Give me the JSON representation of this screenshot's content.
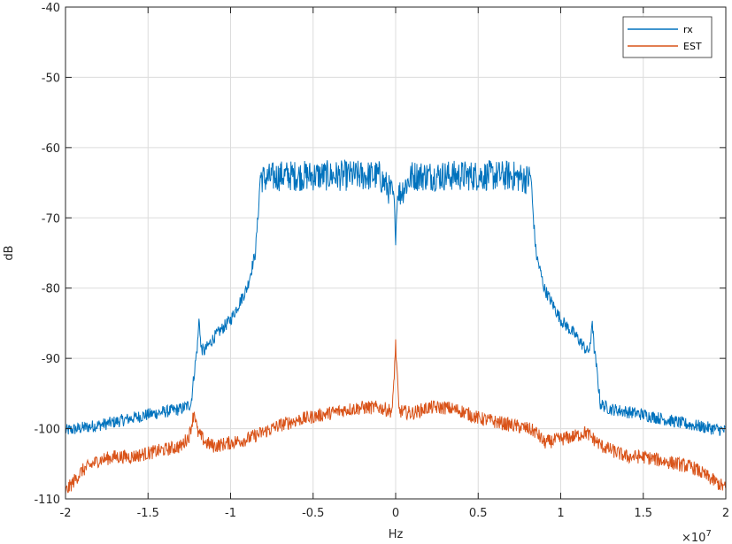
{
  "chart_data": {
    "type": "line",
    "title": "",
    "xlabel": "Hz",
    "ylabel": "dB",
    "x_exponent_label": "×10",
    "x_exponent_power": "7",
    "xlim": [
      -2,
      2
    ],
    "ylim": [
      -110,
      -40
    ],
    "x_ticks": [
      -2,
      -1.5,
      -1,
      -0.5,
      0,
      0.5,
      1,
      1.5,
      2
    ],
    "x_tick_labels": [
      "-2",
      "-1.5",
      "-1",
      "-0.5",
      "0",
      "0.5",
      "1",
      "1.5",
      "2"
    ],
    "y_ticks": [
      -110,
      -100,
      -90,
      -80,
      -70,
      -60,
      -50,
      -40
    ],
    "y_tick_labels": [
      "-110",
      "-100",
      "-90",
      "-80",
      "-70",
      "-60",
      "-50",
      "-40"
    ],
    "grid": true,
    "legend_position": "top-right",
    "series": [
      {
        "name": "rx",
        "color": "#0072bd",
        "x": [
          -2.0,
          -1.75,
          -1.5,
          -1.3,
          -1.24,
          -1.22,
          -1.2,
          -1.19,
          -1.18,
          -1.16,
          -1.1,
          -1.0,
          -0.9,
          -0.85,
          -0.83,
          -0.82,
          -0.8,
          -0.7,
          -0.5,
          -0.3,
          -0.1,
          -0.01,
          0.0,
          0.01,
          0.1,
          0.3,
          0.5,
          0.7,
          0.8,
          0.82,
          0.83,
          0.85,
          0.9,
          1.0,
          1.1,
          1.16,
          1.18,
          1.19,
          1.2,
          1.22,
          1.24,
          1.3,
          1.5,
          1.75,
          2.0
        ],
        "y": [
          -100.3,
          -99.3,
          -98.0,
          -97.2,
          -96.5,
          -92.0,
          -88.0,
          -84.0,
          -88.5,
          -89.0,
          -87.0,
          -84.5,
          -80.0,
          -75.0,
          -68.5,
          -64.0,
          -64.5,
          -64.0,
          -64.0,
          -64.0,
          -64.0,
          -67.0,
          -73.0,
          -67.0,
          -64.0,
          -64.0,
          -64.0,
          -64.0,
          -64.5,
          -64.0,
          -68.5,
          -75.0,
          -80.0,
          -84.5,
          -87.0,
          -89.0,
          -88.5,
          -84.0,
          -88.0,
          -92.0,
          -96.5,
          -97.2,
          -98.0,
          -99.3,
          -100.3
        ]
      },
      {
        "name": "EST",
        "color": "#d95319",
        "x": [
          -2.0,
          -1.9,
          -1.8,
          -1.7,
          -1.6,
          -1.5,
          -1.4,
          -1.3,
          -1.25,
          -1.22,
          -1.2,
          -1.15,
          -1.1,
          -1.0,
          -0.9,
          -0.8,
          -0.7,
          -0.6,
          -0.5,
          -0.4,
          -0.3,
          -0.2,
          -0.1,
          -0.02,
          0.0,
          0.02,
          0.1,
          0.2,
          0.3,
          0.4,
          0.5,
          0.6,
          0.7,
          0.8,
          0.85,
          0.9,
          1.0,
          1.1,
          1.15,
          1.2,
          1.25,
          1.3,
          1.4,
          1.5,
          1.6,
          1.7,
          1.8,
          1.9,
          2.0
        ],
        "y": [
          -109.0,
          -106.0,
          -104.5,
          -104.0,
          -104.0,
          -103.5,
          -103.0,
          -102.5,
          -101.0,
          -97.5,
          -100.5,
          -102.0,
          -102.5,
          -102.0,
          -101.5,
          -100.5,
          -99.5,
          -98.8,
          -98.3,
          -97.8,
          -97.3,
          -97.0,
          -97.0,
          -97.5,
          -88.0,
          -97.5,
          -97.8,
          -97.0,
          -97.0,
          -97.5,
          -98.5,
          -99.0,
          -99.5,
          -100.0,
          -100.5,
          -102.0,
          -101.5,
          -101.0,
          -100.5,
          -101.5,
          -102.5,
          -103.0,
          -104.0,
          -104.0,
          -104.5,
          -105.0,
          -105.5,
          -107.0,
          -108.5
        ]
      }
    ]
  }
}
